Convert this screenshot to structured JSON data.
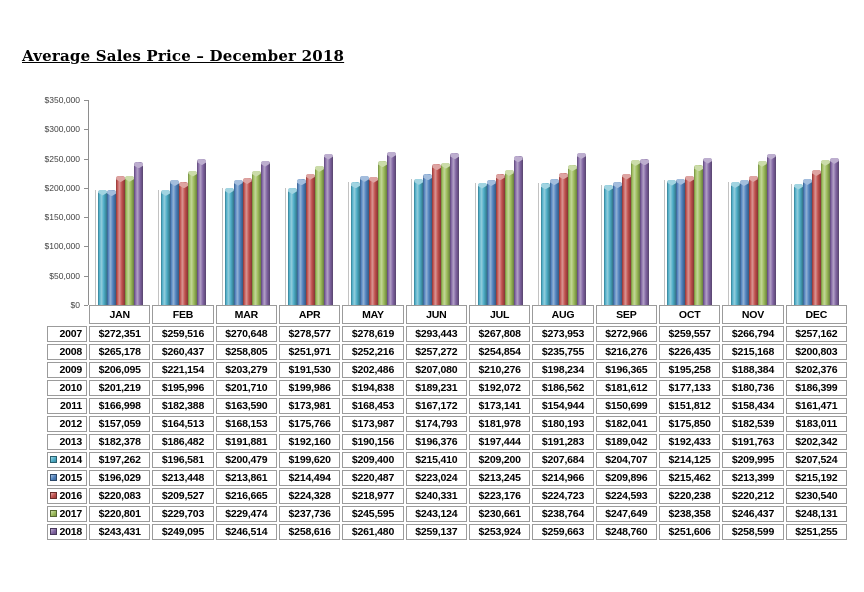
{
  "title": "Average Sales Price – December 2018",
  "chart_data": {
    "type": "bar",
    "title": "Average Sales Price – December 2018",
    "categories": [
      "JAN",
      "FEB",
      "MAR",
      "APR",
      "MAY",
      "JUN",
      "JUL",
      "AUG",
      "SEP",
      "OCT",
      "NOV",
      "DEC"
    ],
    "series": [
      {
        "name": "2014",
        "color": "#4BACC6",
        "values": [
          197262,
          196581,
          200479,
          199620,
          209400,
          215410,
          209200,
          207684,
          204707,
          214125,
          209995,
          207524
        ]
      },
      {
        "name": "2015",
        "color": "#4F81BD",
        "values": [
          196029,
          213448,
          213861,
          214494,
          220487,
          223024,
          213245,
          214966,
          209896,
          215462,
          213399,
          215192
        ]
      },
      {
        "name": "2016",
        "color": "#C0504D",
        "values": [
          220083,
          209527,
          216665,
          224328,
          218977,
          240331,
          223176,
          224723,
          224593,
          220238,
          220212,
          230540
        ]
      },
      {
        "name": "2017",
        "color": "#9BBB59",
        "values": [
          220801,
          229703,
          229474,
          237736,
          245595,
          243124,
          230661,
          238764,
          247649,
          238358,
          246437,
          248131
        ]
      },
      {
        "name": "2018",
        "color": "#8064A2",
        "values": [
          243431,
          249095,
          246514,
          258616,
          261480,
          259137,
          253924,
          259663,
          248760,
          251606,
          258599,
          251255
        ]
      }
    ],
    "xlabel": "",
    "ylabel": "",
    "ylim": [
      0,
      350000
    ],
    "ytick_interval": 50000,
    "ytick_labels_top_to_bottom": [
      "$350,000",
      "$300,000",
      "$250,000",
      "$200,000",
      "$150,000",
      "$100,000",
      "$50,000",
      "$0"
    ],
    "grid": false,
    "legend_position": "table-row-keys"
  },
  "table": {
    "columns": [
      "JAN",
      "FEB",
      "MAR",
      "APR",
      "MAY",
      "JUN",
      "JUL",
      "AUG",
      "SEP",
      "OCT",
      "NOV",
      "DEC"
    ],
    "rows": [
      {
        "year": "2007",
        "key_color": null,
        "values": [
          "$272,351",
          "$259,516",
          "$270,648",
          "$278,577",
          "$278,619",
          "$293,443",
          "$267,808",
          "$273,953",
          "$272,966",
          "$259,557",
          "$266,794",
          "$257,162"
        ]
      },
      {
        "year": "2008",
        "key_color": null,
        "values": [
          "$265,178",
          "$260,437",
          "$258,805",
          "$251,971",
          "$252,216",
          "$257,272",
          "$254,854",
          "$235,755",
          "$216,276",
          "$226,435",
          "$215,168",
          "$200,803"
        ]
      },
      {
        "year": "2009",
        "key_color": null,
        "values": [
          "$206,095",
          "$221,154",
          "$203,279",
          "$191,530",
          "$202,486",
          "$207,080",
          "$210,276",
          "$198,234",
          "$196,365",
          "$195,258",
          "$188,384",
          "$202,376"
        ]
      },
      {
        "year": "2010",
        "key_color": null,
        "values": [
          "$201,219",
          "$195,996",
          "$201,710",
          "$199,986",
          "$194,838",
          "$189,231",
          "$192,072",
          "$186,562",
          "$181,612",
          "$177,133",
          "$180,736",
          "$186,399"
        ]
      },
      {
        "year": "2011",
        "key_color": null,
        "values": [
          "$166,998",
          "$182,388",
          "$163,590",
          "$173,981",
          "$168,453",
          "$167,172",
          "$173,141",
          "$154,944",
          "$150,699",
          "$151,812",
          "$158,434",
          "$161,471"
        ]
      },
      {
        "year": "2012",
        "key_color": null,
        "values": [
          "$157,059",
          "$164,513",
          "$168,153",
          "$175,766",
          "$173,987",
          "$174,793",
          "$181,978",
          "$180,193",
          "$182,041",
          "$175,850",
          "$182,539",
          "$183,011"
        ]
      },
      {
        "year": "2013",
        "key_color": null,
        "values": [
          "$182,378",
          "$186,482",
          "$191,881",
          "$192,160",
          "$190,156",
          "$196,376",
          "$197,444",
          "$191,283",
          "$189,042",
          "$192,433",
          "$191,763",
          "$202,342"
        ]
      },
      {
        "year": "2014",
        "key_color": "#4BACC6",
        "values": [
          "$197,262",
          "$196,581",
          "$200,479",
          "$199,620",
          "$209,400",
          "$215,410",
          "$209,200",
          "$207,684",
          "$204,707",
          "$214,125",
          "$209,995",
          "$207,524"
        ]
      },
      {
        "year": "2015",
        "key_color": "#4F81BD",
        "values": [
          "$196,029",
          "$213,448",
          "$213,861",
          "$214,494",
          "$220,487",
          "$223,024",
          "$213,245",
          "$214,966",
          "$209,896",
          "$215,462",
          "$213,399",
          "$215,192"
        ]
      },
      {
        "year": "2016",
        "key_color": "#C0504D",
        "values": [
          "$220,083",
          "$209,527",
          "$216,665",
          "$224,328",
          "$218,977",
          "$240,331",
          "$223,176",
          "$224,723",
          "$224,593",
          "$220,238",
          "$220,212",
          "$230,540"
        ]
      },
      {
        "year": "2017",
        "key_color": "#9BBB59",
        "values": [
          "$220,801",
          "$229,703",
          "$229,474",
          "$237,736",
          "$245,595",
          "$243,124",
          "$230,661",
          "$238,764",
          "$247,649",
          "$238,358",
          "$246,437",
          "$248,131"
        ]
      },
      {
        "year": "2018",
        "key_color": "#8064A2",
        "values": [
          "$243,431",
          "$249,095",
          "$246,514",
          "$258,616",
          "$261,480",
          "$259,137",
          "$253,924",
          "$259,663",
          "$248,760",
          "$251,606",
          "$258,599",
          "$251,255"
        ]
      }
    ]
  },
  "colors": {
    "table_border": "#9b9b9b",
    "axis_line": "#8e8e8e",
    "axis_label_text": "#3f3f3f",
    "background": "#ffffff"
  }
}
